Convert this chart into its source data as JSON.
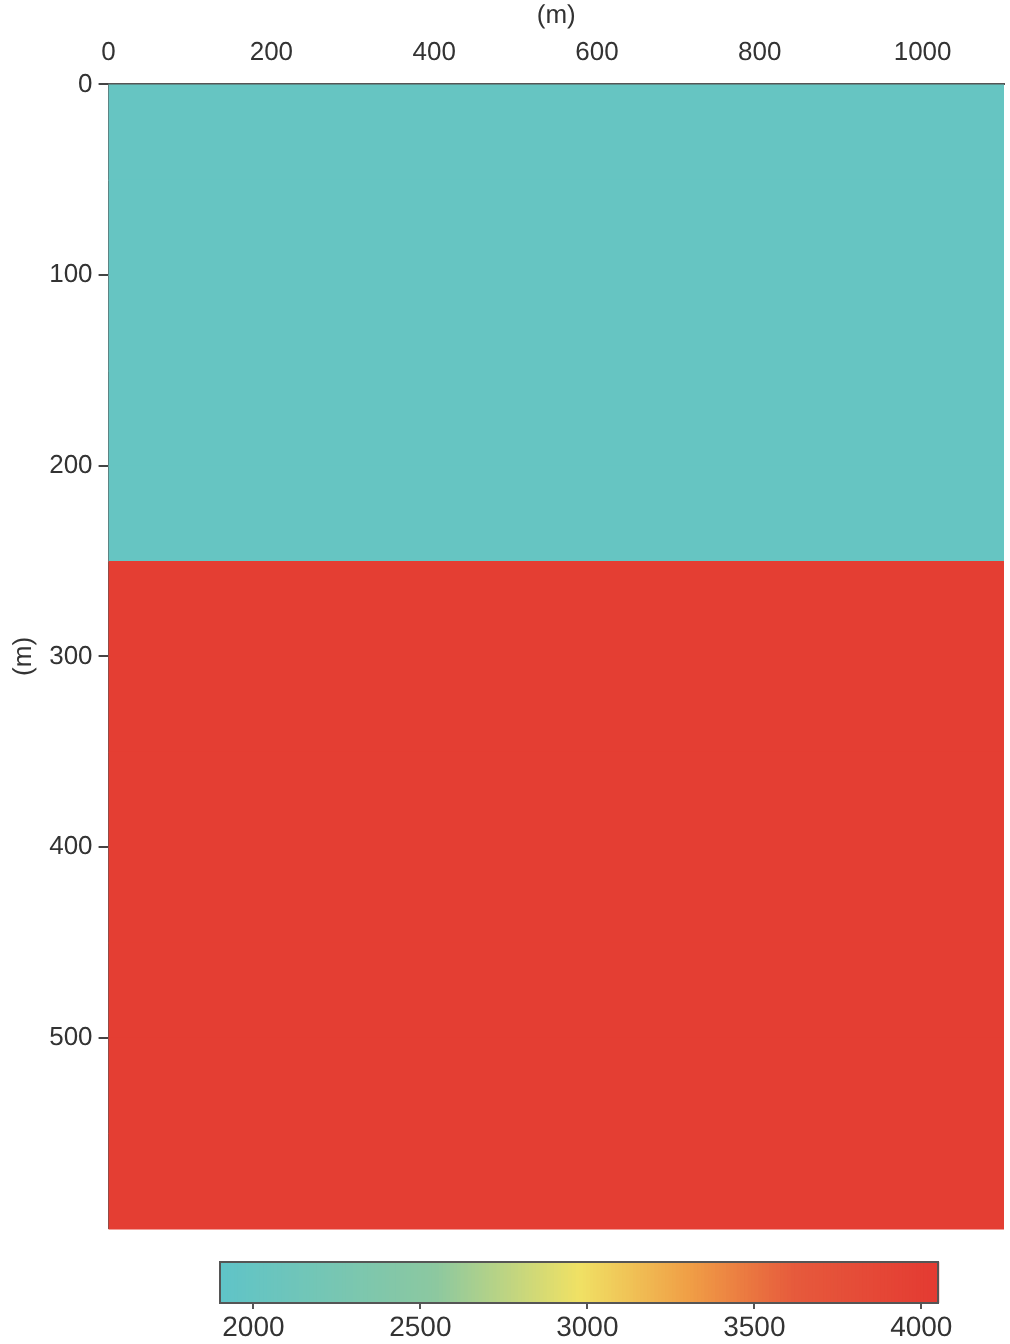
{
  "chart_data": {
    "type": "heatmap",
    "xlabel": "(m)",
    "ylabel": "(m)",
    "cells": [
      [
        2000
      ],
      [
        2000
      ],
      [
        2000
      ],
      [
        2000
      ],
      [
        2000
      ],
      [
        4000
      ],
      [
        4000
      ],
      [
        4000
      ],
      [
        4000
      ],
      [
        4000
      ],
      [
        4000
      ],
      [
        4000
      ]
    ],
    "xlim": [
      0,
      1100
    ],
    "xticks": [
      0,
      200,
      400,
      600,
      800,
      1000
    ],
    "ylim": [
      600,
      0
    ],
    "yticks": [
      0,
      100,
      200,
      300,
      400,
      500
    ],
    "clim": [
      1900,
      4050
    ],
    "cticks": [
      2000,
      2500,
      3000,
      3500,
      4000
    ],
    "grid": false
  }
}
